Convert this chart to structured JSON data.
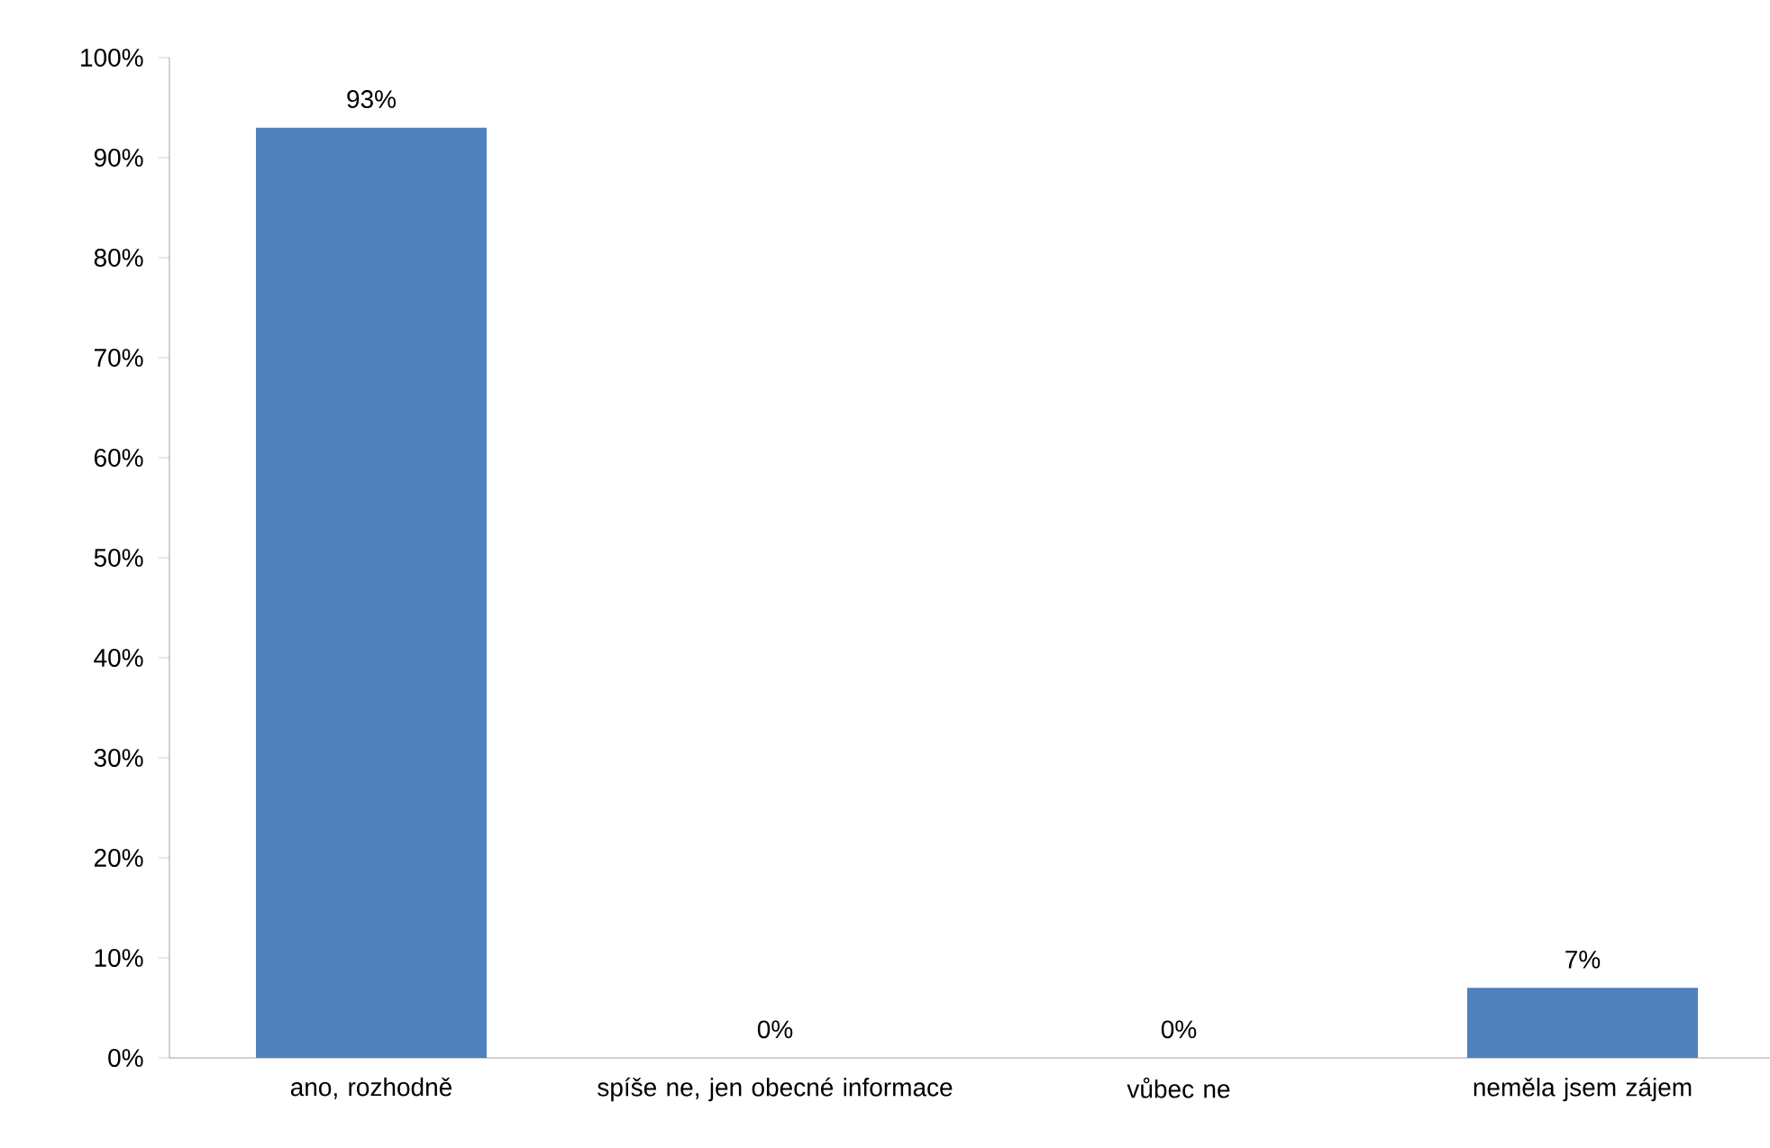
{
  "chart_data": {
    "type": "bar",
    "categories": [
      "ano, rozhodně",
      "spíše ne, jen obecné informace",
      "vůbec ne",
      "neměla jsem zájem"
    ],
    "values": [
      93,
      0,
      0,
      7
    ],
    "value_labels": [
      "93%",
      "0%",
      "0%",
      "7%"
    ],
    "color": "#4f81bd",
    "ylim": [
      0,
      100
    ],
    "yticks": [
      {
        "value": 0,
        "label": "0%"
      },
      {
        "value": 10,
        "label": "10%"
      },
      {
        "value": 20,
        "label": "20%"
      },
      {
        "value": 30,
        "label": "30%"
      },
      {
        "value": 40,
        "label": "40%"
      },
      {
        "value": 50,
        "label": "50%"
      },
      {
        "value": 60,
        "label": "60%"
      },
      {
        "value": 70,
        "label": "70%"
      },
      {
        "value": 80,
        "label": "80%"
      },
      {
        "value": 90,
        "label": "90%"
      },
      {
        "value": 100,
        "label": "100%"
      }
    ]
  }
}
